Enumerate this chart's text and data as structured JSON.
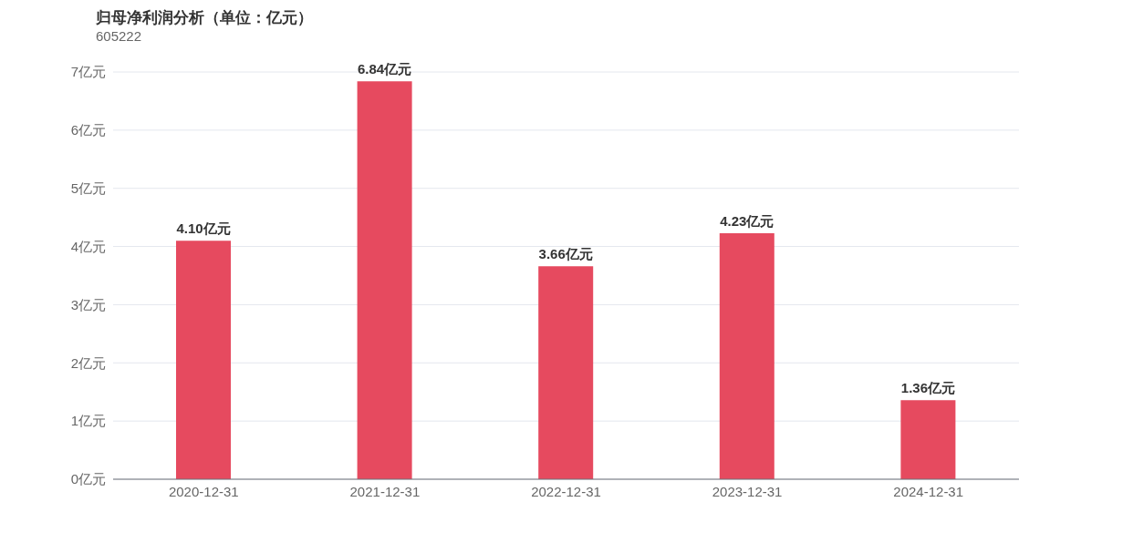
{
  "chart_data": {
    "type": "bar",
    "title": "归母净利润分析（单位：亿元）",
    "subtitle": "605222",
    "categories": [
      "2020-12-31",
      "2021-12-31",
      "2022-12-31",
      "2023-12-31",
      "2024-12-31"
    ],
    "values": [
      4.1,
      6.84,
      3.66,
      4.23,
      1.36
    ],
    "value_labels": [
      "4.10亿元",
      "6.84亿元",
      "3.66亿元",
      "4.23亿元",
      "1.36亿元"
    ],
    "color": "#e64a5f",
    "ylim": [
      0,
      7
    ],
    "yticks": [
      {
        "value": 0,
        "label": "0亿元"
      },
      {
        "value": 1,
        "label": "1亿元"
      },
      {
        "value": 2,
        "label": "2亿元"
      },
      {
        "value": 3,
        "label": "3亿元"
      },
      {
        "value": 4,
        "label": "4亿元"
      },
      {
        "value": 5,
        "label": "5亿元"
      },
      {
        "value": 6,
        "label": "6亿元"
      },
      {
        "value": 7,
        "label": "7亿元"
      }
    ],
    "grid": "y",
    "legend": false
  }
}
